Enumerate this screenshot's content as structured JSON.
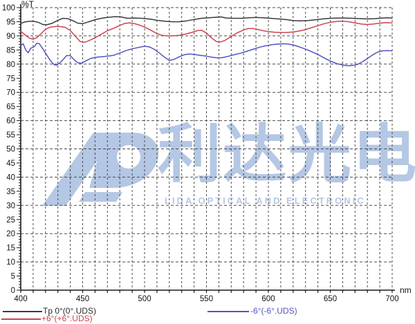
{
  "page": {
    "background": "#ffffff"
  },
  "watermark": {
    "logo_icon": "lida-ld-logo",
    "logo_text": "利达光电",
    "subtitle": "LIDA OPTICAL AND ELECTRONIC",
    "color": "#b4c7e4"
  },
  "chart_data": {
    "type": "line",
    "title": "",
    "xlabel": "nm",
    "ylabel": "%T",
    "xlim": [
      400,
      700
    ],
    "ylim": [
      0,
      100
    ],
    "x_grid_step": 10,
    "y_grid_step": 10,
    "x_tick_step": 10,
    "y_tick_step": 1,
    "x_label_step": 50,
    "y_label_step": 5,
    "grid": "dashed",
    "grid_color": "#4a4a4a",
    "axis_color": "#1a1a1a",
    "legend_position": "bottom",
    "series": [
      {
        "name": "Tp 0°(0°.UDS)",
        "color": "#3a3a3a",
        "points": [
          [
            400,
            94.4
          ],
          [
            403,
            94.9
          ],
          [
            406,
            95.1
          ],
          [
            410,
            95.2
          ],
          [
            414,
            94.8
          ],
          [
            418,
            94.0
          ],
          [
            421,
            93.9
          ],
          [
            425,
            94.4
          ],
          [
            430,
            95.5
          ],
          [
            434,
            96.2
          ],
          [
            438,
            96.1
          ],
          [
            442,
            95.4
          ],
          [
            446,
            94.5
          ],
          [
            450,
            94.3
          ],
          [
            455,
            95.0
          ],
          [
            460,
            95.7
          ],
          [
            465,
            96.2
          ],
          [
            470,
            96.5
          ],
          [
            476,
            96.8
          ],
          [
            481,
            96.7
          ],
          [
            486,
            96.2
          ],
          [
            492,
            96.3
          ],
          [
            498,
            96.2
          ],
          [
            505,
            95.9
          ],
          [
            510,
            95.5
          ],
          [
            516,
            95.2
          ],
          [
            522,
            95.0
          ],
          [
            528,
            95.0
          ],
          [
            534,
            95.3
          ],
          [
            540,
            95.8
          ],
          [
            546,
            96.2
          ],
          [
            552,
            96.4
          ],
          [
            558,
            96.6
          ],
          [
            562,
            96.7
          ],
          [
            566,
            96.3
          ],
          [
            572,
            96.2
          ],
          [
            578,
            96.2
          ],
          [
            584,
            96.4
          ],
          [
            590,
            96.5
          ],
          [
            596,
            96.4
          ],
          [
            602,
            96.2
          ],
          [
            608,
            96.0
          ],
          [
            614,
            95.8
          ],
          [
            620,
            95.4
          ],
          [
            626,
            95.3
          ],
          [
            632,
            95.4
          ],
          [
            638,
            95.7
          ],
          [
            644,
            96.0
          ],
          [
            650,
            96.2
          ],
          [
            656,
            96.3
          ],
          [
            662,
            96.3
          ],
          [
            668,
            96.2
          ],
          [
            674,
            96.1
          ],
          [
            680,
            96.0
          ],
          [
            686,
            96.1
          ],
          [
            692,
            96.3
          ],
          [
            696,
            96.4
          ],
          [
            700,
            96.3
          ]
        ]
      },
      {
        "name": "+6°(+6°.UDS)",
        "color": "#cc4252",
        "points": [
          [
            400,
            91.6
          ],
          [
            404,
            90.2
          ],
          [
            407,
            89.2
          ],
          [
            410,
            88.8
          ],
          [
            413,
            89.4
          ],
          [
            416,
            90.6
          ],
          [
            420,
            92.3
          ],
          [
            424,
            93.1
          ],
          [
            428,
            93.3
          ],
          [
            432,
            93.3
          ],
          [
            436,
            93.0
          ],
          [
            440,
            91.9
          ],
          [
            444,
            89.9
          ],
          [
            448,
            88.0
          ],
          [
            451,
            87.7
          ],
          [
            454,
            88.1
          ],
          [
            458,
            88.9
          ],
          [
            462,
            89.8
          ],
          [
            466,
            90.8
          ],
          [
            470,
            91.8
          ],
          [
            475,
            92.7
          ],
          [
            480,
            93.7
          ],
          [
            484,
            94.4
          ],
          [
            488,
            94.6
          ],
          [
            492,
            94.3
          ],
          [
            496,
            93.8
          ],
          [
            500,
            93.1
          ],
          [
            505,
            92.0
          ],
          [
            510,
            90.8
          ],
          [
            514,
            90.2
          ],
          [
            518,
            90.0
          ],
          [
            523,
            90.0
          ],
          [
            528,
            90.2
          ],
          [
            533,
            90.6
          ],
          [
            538,
            91.2
          ],
          [
            543,
            91.9
          ],
          [
            546,
            92.0
          ],
          [
            550,
            91.0
          ],
          [
            554,
            89.3
          ],
          [
            558,
            88.0
          ],
          [
            561,
            87.8
          ],
          [
            565,
            88.4
          ],
          [
            570,
            89.8
          ],
          [
            575,
            91.1
          ],
          [
            580,
            92.1
          ],
          [
            584,
            92.6
          ],
          [
            588,
            92.6
          ],
          [
            592,
            92.2
          ],
          [
            596,
            91.8
          ],
          [
            600,
            91.5
          ],
          [
            605,
            91.3
          ],
          [
            610,
            91.2
          ],
          [
            615,
            91.2
          ],
          [
            620,
            91.4
          ],
          [
            625,
            91.7
          ],
          [
            630,
            92.2
          ],
          [
            635,
            92.9
          ],
          [
            640,
            93.6
          ],
          [
            645,
            94.3
          ],
          [
            650,
            94.8
          ],
          [
            655,
            95.1
          ],
          [
            660,
            95.2
          ],
          [
            665,
            95.0
          ],
          [
            670,
            94.6
          ],
          [
            675,
            94.2
          ],
          [
            680,
            94.0
          ],
          [
            685,
            94.2
          ],
          [
            690,
            94.5
          ],
          [
            695,
            94.7
          ],
          [
            700,
            94.6
          ]
        ]
      },
      {
        "name": "-6°(-6°.UDS)",
        "color": "#5153c1",
        "points": [
          [
            400,
            86.6
          ],
          [
            402,
            87.2
          ],
          [
            404,
            85.0
          ],
          [
            406,
            84.0
          ],
          [
            408,
            85.6
          ],
          [
            411,
            86.2
          ],
          [
            413,
            87.4
          ],
          [
            415,
            87.2
          ],
          [
            418,
            85.3
          ],
          [
            421,
            83.2
          ],
          [
            424,
            81.2
          ],
          [
            427,
            79.8
          ],
          [
            429,
            79.6
          ],
          [
            432,
            80.6
          ],
          [
            435,
            82.0
          ],
          [
            437,
            83.0
          ],
          [
            440,
            83.0
          ],
          [
            443,
            81.6
          ],
          [
            446,
            80.5
          ],
          [
            449,
            80.3
          ],
          [
            452,
            81.0
          ],
          [
            456,
            81.9
          ],
          [
            460,
            82.4
          ],
          [
            465,
            82.6
          ],
          [
            470,
            82.8
          ],
          [
            475,
            83.1
          ],
          [
            480,
            83.9
          ],
          [
            485,
            84.8
          ],
          [
            490,
            85.4
          ],
          [
            495,
            85.9
          ],
          [
            500,
            86.3
          ],
          [
            504,
            86.1
          ],
          [
            508,
            85.2
          ],
          [
            512,
            83.9
          ],
          [
            516,
            82.5
          ],
          [
            520,
            81.3
          ],
          [
            524,
            81.7
          ],
          [
            528,
            82.6
          ],
          [
            532,
            83.3
          ],
          [
            536,
            83.6
          ],
          [
            540,
            83.4
          ],
          [
            545,
            83.1
          ],
          [
            550,
            82.8
          ],
          [
            555,
            82.4
          ],
          [
            559,
            82.2
          ],
          [
            563,
            82.3
          ],
          [
            568,
            82.8
          ],
          [
            573,
            83.4
          ],
          [
            578,
            83.9
          ],
          [
            583,
            84.6
          ],
          [
            588,
            85.3
          ],
          [
            593,
            86.0
          ],
          [
            598,
            86.5
          ],
          [
            603,
            86.9
          ],
          [
            608,
            87.1
          ],
          [
            612,
            87.2
          ],
          [
            616,
            87.1
          ],
          [
            620,
            86.8
          ],
          [
            625,
            86.1
          ],
          [
            630,
            85.3
          ],
          [
            635,
            84.4
          ],
          [
            640,
            83.4
          ],
          [
            645,
            82.2
          ],
          [
            650,
            81.1
          ],
          [
            655,
            80.2
          ],
          [
            660,
            79.7
          ],
          [
            664,
            79.4
          ],
          [
            668,
            79.5
          ],
          [
            672,
            79.9
          ],
          [
            676,
            80.8
          ],
          [
            680,
            82.0
          ],
          [
            684,
            83.2
          ],
          [
            688,
            84.2
          ],
          [
            692,
            84.7
          ],
          [
            696,
            84.8
          ],
          [
            700,
            84.7
          ]
        ]
      }
    ]
  }
}
